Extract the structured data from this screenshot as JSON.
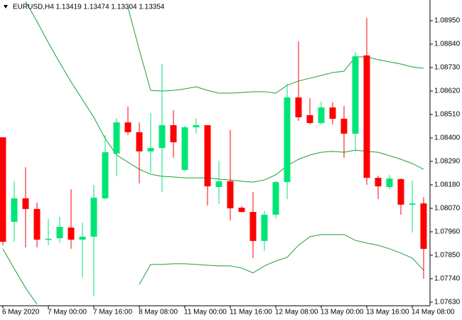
{
  "chart_data": {
    "type": "candlestick",
    "title": "EURUSD,H4  1.13419 1.13474 1.13304 1.13354",
    "categories": [
      "6 May 2020",
      null,
      null,
      null,
      "7 May 00:00",
      null,
      null,
      null,
      "7 May 16:00",
      null,
      null,
      null,
      "8 May 08:00",
      null,
      null,
      null,
      "11 May 00:00",
      null,
      null,
      null,
      "11 May 16:00",
      null,
      null,
      null,
      "12 May 08:00",
      null,
      null,
      null,
      "13 May 00:00",
      null,
      null,
      null,
      "13 May 16:00",
      null,
      null,
      null,
      "14 May 08:00",
      null
    ],
    "open": [
      1.08403,
      1.08007,
      1.08117,
      1.08067,
      1.07923,
      1.0793,
      1.0798,
      1.07923,
      1.07937,
      1.08117,
      1.08327,
      1.08473,
      1.08427,
      1.08337,
      1.08353,
      1.0846,
      1.0825,
      1.0845,
      1.0846,
      1.0817,
      1.08197,
      1.08073,
      1.08053,
      1.07917,
      1.0804,
      1.08193,
      1.0859,
      1.08507,
      1.0847,
      1.08543,
      1.0849,
      1.0842,
      1.08787,
      1.08213,
      1.0817,
      1.08207,
      1.08087,
      1.08093
    ],
    "high": [
      1.08403,
      1.08197,
      1.08263,
      1.08097,
      1.0802,
      1.0803,
      1.0816,
      1.08003,
      1.0818,
      1.08413,
      1.08493,
      1.08547,
      1.08473,
      1.08517,
      1.08747,
      1.0853,
      1.08457,
      1.08493,
      1.0846,
      1.08293,
      1.08437,
      1.0808,
      1.08147,
      1.08057,
      1.082,
      1.08653,
      1.08853,
      1.08587,
      1.0857,
      1.08567,
      1.0855,
      1.08803,
      1.08963,
      1.08223,
      1.08227,
      1.0821,
      1.082,
      1.08123
    ],
    "low": [
      1.07897,
      1.07913,
      1.07887,
      1.07887,
      1.07897,
      1.0791,
      1.0788,
      1.07747,
      1.07657,
      1.08113,
      1.0822,
      1.08413,
      1.08187,
      1.08237,
      1.08147,
      1.08307,
      1.08243,
      1.0842,
      1.08083,
      1.0809,
      1.08013,
      1.0805,
      1.07837,
      1.0787,
      1.08023,
      1.08113,
      1.0848,
      1.08463,
      1.08463,
      1.08463,
      1.08307,
      1.08337,
      1.0818,
      1.08113,
      1.0816,
      1.0804,
      1.07957,
      1.0774
    ],
    "close": [
      1.07913,
      1.08117,
      1.08067,
      1.07923,
      1.07927,
      1.07983,
      1.07923,
      1.07937,
      1.0812,
      1.08333,
      1.08473,
      1.08427,
      1.08337,
      1.08353,
      1.0846,
      1.0838,
      1.0845,
      1.0846,
      1.08173,
      1.08197,
      1.0807,
      1.08053,
      1.07917,
      1.0804,
      1.08193,
      1.0859,
      1.08497,
      1.0847,
      1.08543,
      1.0849,
      1.0842,
      1.08783,
      1.08213,
      1.08173,
      1.0821,
      1.08087,
      1.08093,
      1.0788
    ],
    "up_color": "#00e676",
    "down_color": "#ff0000",
    "series": [
      {
        "color": "#1e9e3a",
        "values": [
          null,
          null,
          null,
          null,
          null,
          null,
          null,
          null,
          null,
          null,
          null,
          1.09013,
          1.08813,
          1.08623,
          1.0862,
          1.08623,
          1.0863,
          1.0864,
          1.08623,
          1.0861,
          1.0861,
          1.08613,
          1.08617,
          1.08617,
          1.0861,
          1.08647,
          1.08667,
          1.0868,
          1.08693,
          1.08707,
          1.08713,
          1.0878,
          1.0878,
          1.08767,
          1.08757,
          1.08747,
          1.08733,
          1.08727
        ]
      },
      {
        "color": "#1e9e3a",
        "values": [
          null,
          null,
          1.0904,
          1.08947,
          1.08847,
          1.08753,
          1.08663,
          1.0858,
          1.08497,
          1.08397,
          1.0832,
          1.08287,
          1.08253,
          1.0823,
          1.0822,
          1.08217,
          1.08213,
          1.08213,
          1.08213,
          1.08207,
          1.08203,
          1.08197,
          1.08193,
          1.08203,
          1.08227,
          1.0827,
          1.083,
          1.0832,
          1.08333,
          1.08337,
          1.08333,
          1.08343,
          1.08337,
          1.08333,
          1.08317,
          1.083,
          1.0828,
          1.08253
        ]
      },
      {
        "color": "#1e9e3a",
        "values": [
          1.0788,
          1.07787,
          1.07697,
          1.0762,
          null,
          null,
          null,
          null,
          null,
          null,
          null,
          null,
          1.07713,
          1.07807,
          1.07807,
          1.0781,
          1.0781,
          1.07807,
          1.07803,
          1.078,
          1.078,
          1.0779,
          1.07767,
          1.078,
          1.07823,
          1.0784,
          1.07897,
          1.07937,
          1.07947,
          1.07947,
          1.07947,
          1.0792,
          1.07907,
          1.07897,
          1.0788,
          1.0786,
          1.07837,
          1.0778
        ]
      }
    ],
    "ylim": [
      1.07613,
      1.09047
    ],
    "yticks": [
      {
        "value": 1.0895,
        "label": "1.08950"
      },
      {
        "value": 1.0884,
        "label": "1.08840"
      },
      {
        "value": 1.0873,
        "label": "1.08730"
      },
      {
        "value": 1.0862,
        "label": "1.08620"
      },
      {
        "value": 1.0851,
        "label": "1.08510"
      },
      {
        "value": 1.084,
        "label": "1.08400"
      },
      {
        "value": 1.0829,
        "label": "1.08290"
      },
      {
        "value": 1.0818,
        "label": "1.08180"
      },
      {
        "value": 1.0807,
        "label": "1.08070"
      },
      {
        "value": 1.0796,
        "label": "1.07960"
      },
      {
        "value": 1.0785,
        "label": "1.07850"
      },
      {
        "value": 1.0774,
        "label": "1.07740"
      },
      {
        "value": 1.0763,
        "label": "1.07630"
      }
    ]
  }
}
